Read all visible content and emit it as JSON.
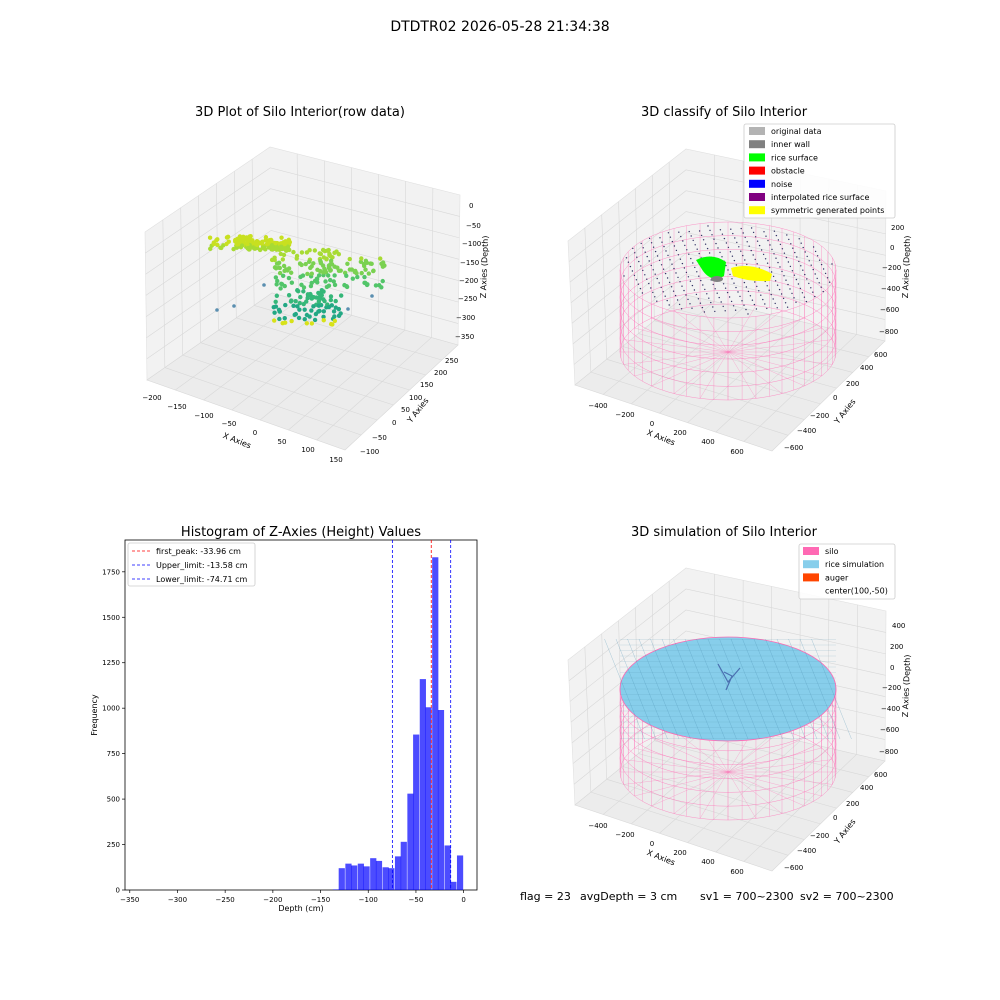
{
  "suptitle": "DTDTR02 2026-05-28 21:34:38",
  "panels": {
    "raw": {
      "title": "3D Plot of Silo Interior(row data)",
      "xlabel": "X Axies",
      "ylabel": "Y Axies",
      "zlabel": "Z Axies (Depth)",
      "xticks": [
        "−200",
        "−150",
        "−100",
        "−50",
        "0",
        "50",
        "100",
        "150"
      ],
      "yticks": [
        "−100",
        "−50",
        "0",
        "50",
        "100",
        "150",
        "200",
        "250"
      ],
      "zticks": [
        "0",
        "−50",
        "−100",
        "−150",
        "−200",
        "−250",
        "−300",
        "−350"
      ]
    },
    "classify": {
      "title": "3D classify of Silo Interior",
      "xlabel": "X Axies",
      "ylabel": "Y Axies",
      "zlabel": "Z Axies (Depth)",
      "xticks": [
        "−400",
        "−200",
        "0",
        "200",
        "400",
        "600"
      ],
      "yticks": [
        "−600",
        "−400",
        "−200",
        "0",
        "200",
        "400",
        "600"
      ],
      "zticks": [
        "200",
        "0",
        "−200",
        "−400",
        "−600",
        "−800"
      ],
      "legend": [
        {
          "label": "original data",
          "color": "#b3b3b3"
        },
        {
          "label": "inner wall",
          "color": "#808080"
        },
        {
          "label": "rice surface",
          "color": "#00ff00"
        },
        {
          "label": "obstacle",
          "color": "#ff0000"
        },
        {
          "label": "noise",
          "color": "#0000ff"
        },
        {
          "label": "interpolated rice surface",
          "color": "#800080"
        },
        {
          "label": "symmetric generated points",
          "color": "#ffff00"
        }
      ]
    },
    "simulation": {
      "title": "3D simulation of Silo Interior",
      "xlabel": "X Axies",
      "ylabel": "Y Axies",
      "zlabel": "Z Axies (Depth)",
      "xticks": [
        "−400",
        "−200",
        "0",
        "200",
        "400",
        "600"
      ],
      "yticks": [
        "−600",
        "−400",
        "−200",
        "0",
        "200",
        "400",
        "600"
      ],
      "zticks": [
        "400",
        "200",
        "0",
        "−200",
        "−400",
        "−600",
        "−800"
      ],
      "legend": [
        {
          "label": "silo",
          "color": "#ff69b4"
        },
        {
          "label": "rice simulation",
          "color": "#87ceeb"
        },
        {
          "label": "auger",
          "color": "#ff4500"
        },
        {
          "label": "center(100,-50)",
          "color": ""
        }
      ]
    }
  },
  "footer": {
    "flag": "flag = 23",
    "avg": "avgDepth = 3 cm",
    "sv1": "sv1 = 700~2300",
    "sv2": "sv2 = 700~2300"
  },
  "chart_data": {
    "type": "bar",
    "title": "Histogram of Z-Axies (Height) Values",
    "xlabel": "Depth (cm)",
    "ylabel": "Frequency",
    "xlim": [
      -355,
      14
    ],
    "ylim": [
      0,
      1925
    ],
    "xticks": [
      -350,
      -300,
      -250,
      -200,
      -150,
      -100,
      -50,
      0
    ],
    "yticks": [
      0,
      250,
      500,
      750,
      1000,
      1250,
      1500,
      1750
    ],
    "bar_color": "#0000ff",
    "bin_width": 6.5,
    "bins": [
      {
        "x0": -137,
        "value": 3
      },
      {
        "x0": -131,
        "value": 120
      },
      {
        "x0": -124,
        "value": 145
      },
      {
        "x0": -118,
        "value": 135
      },
      {
        "x0": -111,
        "value": 145
      },
      {
        "x0": -105,
        "value": 130
      },
      {
        "x0": -98,
        "value": 175
      },
      {
        "x0": -92,
        "value": 160
      },
      {
        "x0": -85,
        "value": 125
      },
      {
        "x0": -79,
        "value": 120
      },
      {
        "x0": -72,
        "value": 185
      },
      {
        "x0": -66,
        "value": 265
      },
      {
        "x0": -59,
        "value": 530
      },
      {
        "x0": -53,
        "value": 855
      },
      {
        "x0": -46,
        "value": 1160
      },
      {
        "x0": -40,
        "value": 1005
      },
      {
        "x0": -33,
        "value": 1830
      },
      {
        "x0": -27,
        "value": 990
      },
      {
        "x0": -20,
        "value": 245
      },
      {
        "x0": -14,
        "value": 45
      },
      {
        "x0": -7,
        "value": 190
      }
    ],
    "lines": [
      {
        "label": "first_peak: -33.96 cm",
        "x": -33.96,
        "color": "#ff0000"
      },
      {
        "label": "Upper_limit: -13.58 cm",
        "x": -13.58,
        "color": "#0000ff"
      },
      {
        "label": "Lower_limit: -74.71 cm",
        "x": -74.71,
        "color": "#0000ff"
      }
    ]
  }
}
